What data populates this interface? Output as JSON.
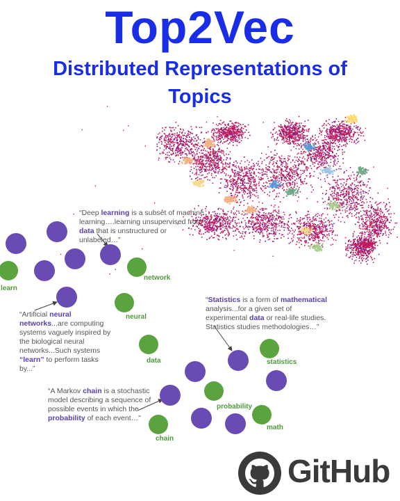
{
  "header": {
    "title": "Top2Vec",
    "subtitle_line1": "Distributed Representations of",
    "subtitle_line2": "Topics"
  },
  "colors": {
    "title": "#1a2de6",
    "doc_node": "#6a4bb4",
    "word_node": "#5aa33f",
    "word_label": "#4f9a3c",
    "highlight": "#5b3fb0",
    "scatter_base": "#c2185b"
  },
  "quotes": {
    "deep_learning": [
      {
        "t": "“Deep "
      },
      {
        "t": "learning",
        "b": true
      },
      {
        "t": " is a subset of machine learning….learning unsupervised from "
      },
      {
        "t": "data",
        "b": true
      },
      {
        "t": " that is unstructured or unlabeled…”"
      }
    ],
    "neural_networks": [
      {
        "t": "“Artificial "
      },
      {
        "t": "neural networks",
        "b": true
      },
      {
        "t": "...are computing systems vaguely inspired by the biological neural networks...Such systems "
      },
      {
        "t": "“learn”",
        "b": true
      },
      {
        "t": " to perform tasks by...”"
      }
    ],
    "statistics": [
      {
        "t": "“"
      },
      {
        "t": "Statistics",
        "b": true
      },
      {
        "t": " is a form of "
      },
      {
        "t": "mathematical",
        "b": true
      },
      {
        "t": " analysis...for a given set of experimental "
      },
      {
        "t": "data",
        "b": true
      },
      {
        "t": " or real-life studies. Statistics studies methodologies…”"
      }
    ],
    "markov": [
      {
        "t": "“A Markov "
      },
      {
        "t": "chain",
        "b": true
      },
      {
        "t": " is a stochastic model describing a sequence of possible events in which the "
      },
      {
        "t": "probability",
        "b": true
      },
      {
        "t": " of each event…”"
      }
    ]
  },
  "word_labels": {
    "learn": "learn",
    "network": "network",
    "neural": "neural",
    "data": "data",
    "statistics": "statistics",
    "probability": "probability",
    "math": "math",
    "chain": "chain"
  },
  "footer": {
    "github_label": "GitHub",
    "github_icon": "github-octocat-icon"
  }
}
